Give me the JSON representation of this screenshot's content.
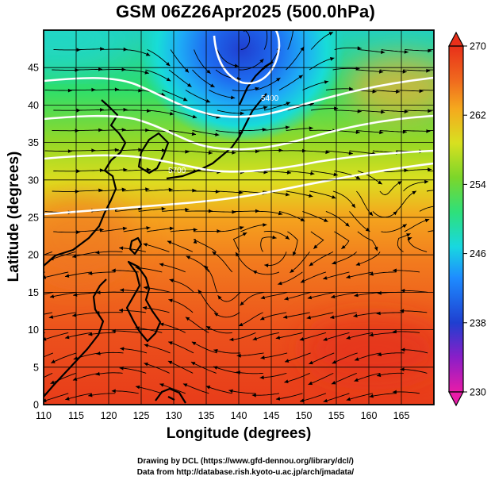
{
  "title": "GSM 06Z26Apr2025 (500.0hPa)",
  "axes": {
    "xlabel": "Longitude (degrees)",
    "ylabel": "Latitude  (degrees)",
    "xlim": [
      110,
      170
    ],
    "ylim": [
      0,
      50
    ],
    "x_ticks": [
      110,
      115,
      120,
      125,
      130,
      135,
      140,
      145,
      150,
      155,
      160,
      165
    ],
    "y_ticks": [
      0,
      5,
      10,
      15,
      20,
      25,
      30,
      35,
      40,
      45
    ]
  },
  "colorbar": {
    "min": 230,
    "max": 270,
    "ticks": [
      230,
      238,
      246,
      254,
      262,
      270
    ],
    "colors": [
      "#e81ca8",
      "#8a1ec8",
      "#1f3fd0",
      "#1e8cff",
      "#18d8e0",
      "#2ee07a",
      "#7cd62a",
      "#d8e020",
      "#f5a81e",
      "#f06a1e",
      "#e8301a"
    ]
  },
  "contours": {
    "labels": [
      "5400",
      "5700"
    ],
    "levels_m": [
      5400,
      5500,
      5600,
      5700,
      5800
    ]
  },
  "credits": {
    "line1": "Drawing by DCL (https://www.gfd-dennou.org/library/dcl/)",
    "line2": "Data from http://database.rish.kyoto-u.ac.jp/arch/jmadata/"
  },
  "chart_data": {
    "type": "heatmap",
    "title": "GSM 06Z26Apr2025 (500.0hPa)",
    "variable": "temperature (K) with wind streamlines and geopotential height contours",
    "xlabel": "Longitude (degrees)",
    "ylabel": "Latitude  (degrees)",
    "xlim": [
      110,
      170
    ],
    "ylim": [
      0,
      50
    ],
    "colorbar_range": [
      230,
      270
    ],
    "colorbar_ticks": [
      230,
      238,
      246,
      254,
      262,
      270
    ],
    "cold_low_center": {
      "lon": 140,
      "lat": 47,
      "value": 240
    },
    "height_contours_m": [
      5400,
      5500,
      5600,
      5700,
      5800
    ],
    "contour_labels": [
      "5400",
      "5700"
    ],
    "vortices": [
      {
        "lon": 162,
        "lat": 26
      },
      {
        "lon": 145,
        "lat": 20
      },
      {
        "lon": 138,
        "lat": 13
      }
    ],
    "temperature_by_latitude": [
      {
        "lat": 0,
        "value": 267
      },
      {
        "lat": 10,
        "value": 266
      },
      {
        "lat": 20,
        "value": 264
      },
      {
        "lat": 30,
        "value": 260
      },
      {
        "lat": 40,
        "value": 254
      },
      {
        "lat": 45,
        "value": 249
      },
      {
        "lat": 50,
        "value": 246
      }
    ]
  }
}
